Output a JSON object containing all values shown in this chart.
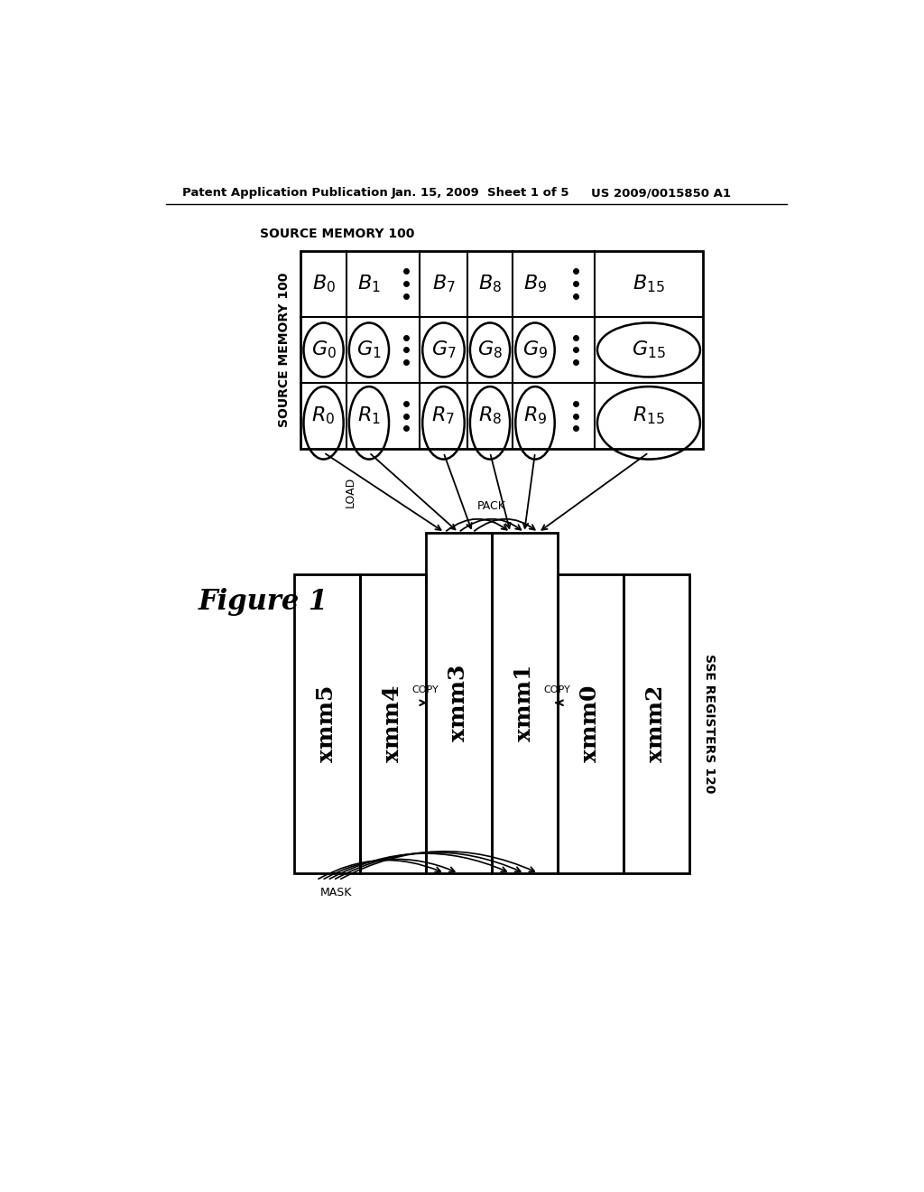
{
  "bg_color": "#ffffff",
  "header_left": "Patent Application Publication",
  "header_mid": "Jan. 15, 2009  Sheet 1 of 5",
  "header_right": "US 2009/0015850 A1",
  "figure_label": "Figure 1",
  "source_memory_label": "SOURCE MEMORY 100",
  "sse_registers_label": "SSE REGISTERS 120",
  "load_label": "LOAD",
  "pack_label": "PACK",
  "mask_label": "MASK",
  "copy_label1": "COPY",
  "copy_label2": "COPY",
  "reg_names": [
    "xmm5",
    "xmm4",
    "xmm3",
    "xmm1",
    "xmm0",
    "xmm2"
  ],
  "mem_col_labels_B": [
    "B_0",
    "B_1",
    "B_7",
    "B_8",
    "B_9",
    "B_{15}"
  ],
  "mem_col_labels_G": [
    "G_0",
    "G_1",
    "G_7",
    "G_8",
    "G_9",
    "G_{15}"
  ],
  "mem_col_labels_R": [
    "R_0",
    "R_1",
    "R_7",
    "R_8",
    "R_9",
    "R_{15}"
  ]
}
